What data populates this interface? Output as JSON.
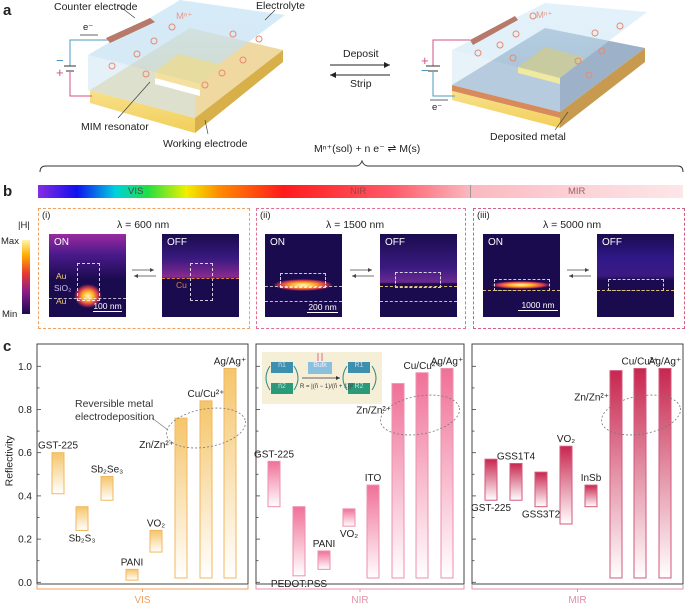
{
  "panel_a": {
    "label": "a",
    "counter_electrode": "Counter electrode",
    "electrolyte": "Electrolyte",
    "electron": "e⁻",
    "ion": "Mⁿ⁺",
    "mim_resonator": "MIM resonator",
    "working_electrode": "Working electrode",
    "deposit": "Deposit",
    "strip": "Strip",
    "deposited_metal": "Deposited metal",
    "equation": "Mⁿ⁺(sol) + n e⁻ ⇌ M(s)",
    "plus": "+",
    "minus": "−"
  },
  "panel_b": {
    "label": "b",
    "spectrum": {
      "vis": "VIS",
      "nir": "NIR",
      "mir": "MIR"
    },
    "colorbar": {
      "title": "|H|",
      "max": "Max",
      "min": "Min"
    },
    "subpanels": [
      {
        "id": "(i)",
        "wavelength": "λ = 600 nm",
        "on": "ON",
        "off": "OFF",
        "scale": "100 nm",
        "layers": [
          "Au",
          "SiO₂",
          "Au"
        ],
        "off_layer": "Cu"
      },
      {
        "id": "(ii)",
        "wavelength": "λ = 1500 nm",
        "on": "ON",
        "off": "OFF",
        "scale": "200 nm"
      },
      {
        "id": "(iii)",
        "wavelength": "λ = 5000 nm",
        "on": "ON",
        "off": "OFF",
        "scale": "1000 nm"
      }
    ],
    "colors": {
      "vis_box": "#f0a060",
      "nir_box": "#e07090",
      "mir_box": "#d06080"
    }
  },
  "panel_c": {
    "label": "c"
  },
  "chart_data": {
    "type": "bar",
    "ylabel": "Reflectivity",
    "ylim": [
      0,
      1.1
    ],
    "yticks": [
      "0.0",
      "0.2",
      "0.4",
      "0.6",
      "0.8",
      "1.0"
    ],
    "annotation": [
      "Reversible metal",
      "electrodeposition"
    ],
    "groups": [
      {
        "name": "VIS",
        "color": "#f5c56a",
        "bars": [
          {
            "label": "GST-225",
            "low": 0.41,
            "high": 0.6
          },
          {
            "label": "Sb₂S₃",
            "low": 0.24,
            "high": 0.35
          },
          {
            "label": "Sb₂Se₃",
            "low": 0.38,
            "high": 0.49
          },
          {
            "label": "PANI",
            "low": 0.01,
            "high": 0.06
          },
          {
            "label": "VO₂",
            "low": 0.14,
            "high": 0.24
          },
          {
            "label": "Zn/Zn²⁺",
            "low": 0.02,
            "high": 0.76
          },
          {
            "label": "Cu/Cu²⁺",
            "low": 0.02,
            "high": 0.84
          },
          {
            "label": "Ag/Ag⁺",
            "low": 0.02,
            "high": 0.99
          }
        ]
      },
      {
        "name": "NIR",
        "color": "#f07098",
        "bars": [
          {
            "label": "GST-225",
            "low": 0.35,
            "high": 0.56
          },
          {
            "label": "PEDOT:PSS",
            "low": 0.03,
            "high": 0.35
          },
          {
            "label": "PANI",
            "low": 0.06,
            "high": 0.145
          },
          {
            "label": "VO₂",
            "low": 0.26,
            "high": 0.34
          },
          {
            "label": "ITO",
            "low": 0.02,
            "high": 0.45
          },
          {
            "label": "Zn/Zn²⁺",
            "low": 0.02,
            "high": 0.92
          },
          {
            "label": "Cu/Cu²⁺",
            "low": 0.02,
            "high": 0.97
          },
          {
            "label": "Ag/Ag⁺",
            "low": 0.02,
            "high": 0.99
          }
        ]
      },
      {
        "name": "MIR",
        "color": "#c8264f",
        "bars": [
          {
            "label": "GST-225",
            "low": 0.38,
            "high": 0.57
          },
          {
            "label": "GSS1T4",
            "low": 0.38,
            "high": 0.55
          },
          {
            "label": "GSS3T2",
            "low": 0.35,
            "high": 0.51
          },
          {
            "label": "VO₂",
            "low": 0.27,
            "high": 0.63
          },
          {
            "label": "InSb",
            "low": 0.35,
            "high": 0.45
          },
          {
            "label": "Zn/Zn²⁺",
            "low": 0.02,
            "high": 0.98
          },
          {
            "label": "Cu/Cu²⁺",
            "low": 0.02,
            "high": 0.99
          },
          {
            "label": "Ag/Ag⁺",
            "low": 0.02,
            "high": 0.99
          }
        ]
      }
    ],
    "inset": {
      "n1": "ñ1",
      "n2": "ñ2",
      "bulk": "Bulk",
      "r1": "R1",
      "r2": "R2",
      "formula": "R = |(ñ − 1)/(ñ + 1)|²"
    }
  }
}
